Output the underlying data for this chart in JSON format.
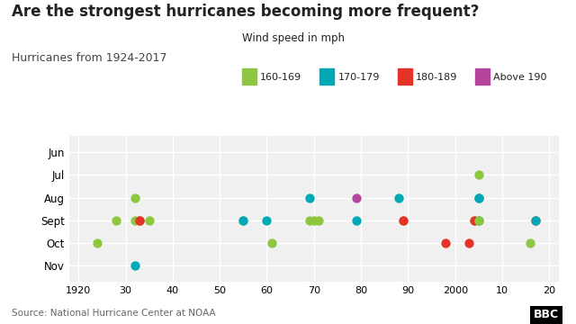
{
  "title": "Are the strongest hurricanes becoming more frequent?",
  "subtitle": "Hurricanes from 1924-2017",
  "legend_title": "Wind speed in mph",
  "source": "Source: National Hurricane Center at NOAA",
  "colors": {
    "160-169": "#8dc63f",
    "170-179": "#00a9b5",
    "180-189": "#e63329",
    "Above 190": "#b5449b"
  },
  "legend_labels": [
    "160-169",
    "170-179",
    "180-189",
    "Above 190"
  ],
  "months": [
    "Jun",
    "Jul",
    "Aug",
    "Sept",
    "Oct",
    "Nov"
  ],
  "month_y": {
    "Jun": 6,
    "Jul": 5,
    "Aug": 4,
    "Sept": 3,
    "Oct": 2,
    "Nov": 1
  },
  "xlim": [
    1918,
    2022
  ],
  "xticks": [
    1920,
    1930,
    1940,
    1950,
    1960,
    1970,
    1980,
    1990,
    2000,
    2010,
    2020
  ],
  "xticklabels": [
    "1920",
    "30",
    "40",
    "50",
    "60",
    "70",
    "80",
    "90",
    "2000",
    "10",
    "20"
  ],
  "ylim": [
    0.3,
    6.7
  ],
  "dots": [
    {
      "year": 1924,
      "month": "Oct",
      "speed": "160-169"
    },
    {
      "year": 1928,
      "month": "Sept",
      "speed": "160-169"
    },
    {
      "year": 1932,
      "month": "Aug",
      "speed": "160-169"
    },
    {
      "year": 1932,
      "month": "Sept",
      "speed": "160-169"
    },
    {
      "year": 1933,
      "month": "Sept",
      "speed": "180-189"
    },
    {
      "year": 1933,
      "month": "Sept",
      "speed": "160-169"
    },
    {
      "year": 1933,
      "month": "Sept",
      "speed": "180-189"
    },
    {
      "year": 1935,
      "month": "Sept",
      "speed": "160-169"
    },
    {
      "year": 1932,
      "month": "Nov",
      "speed": "170-179"
    },
    {
      "year": 1955,
      "month": "Sept",
      "speed": "160-169"
    },
    {
      "year": 1955,
      "month": "Sept",
      "speed": "170-179"
    },
    {
      "year": 1961,
      "month": "Oct",
      "speed": "160-169"
    },
    {
      "year": 1960,
      "month": "Sept",
      "speed": "170-179"
    },
    {
      "year": 1969,
      "month": "Aug",
      "speed": "170-179"
    },
    {
      "year": 1969,
      "month": "Sept",
      "speed": "160-169"
    },
    {
      "year": 1970,
      "month": "Sept",
      "speed": "160-169"
    },
    {
      "year": 1971,
      "month": "Sept",
      "speed": "160-169"
    },
    {
      "year": 1979,
      "month": "Aug",
      "speed": "Above 190"
    },
    {
      "year": 1979,
      "month": "Sept",
      "speed": "170-179"
    },
    {
      "year": 1988,
      "month": "Aug",
      "speed": "170-179"
    },
    {
      "year": 1989,
      "month": "Sept",
      "speed": "160-169"
    },
    {
      "year": 1989,
      "month": "Sept",
      "speed": "180-189"
    },
    {
      "year": 1998,
      "month": "Oct",
      "speed": "180-189"
    },
    {
      "year": 2003,
      "month": "Oct",
      "speed": "180-189"
    },
    {
      "year": 2004,
      "month": "Sept",
      "speed": "160-169"
    },
    {
      "year": 2004,
      "month": "Sept",
      "speed": "180-189"
    },
    {
      "year": 2005,
      "month": "Jul",
      "speed": "160-169"
    },
    {
      "year": 2005,
      "month": "Aug",
      "speed": "170-179"
    },
    {
      "year": 2005,
      "month": "Aug",
      "speed": "170-179"
    },
    {
      "year": 2005,
      "month": "Sept",
      "speed": "170-179"
    },
    {
      "year": 2005,
      "month": "Sept",
      "speed": "160-169"
    },
    {
      "year": 2016,
      "month": "Oct",
      "speed": "160-169"
    },
    {
      "year": 2017,
      "month": "Sept",
      "speed": "180-189"
    },
    {
      "year": 2017,
      "month": "Sept",
      "speed": "170-179"
    }
  ],
  "background_color": "#ffffff",
  "plot_bg": "#f0f0f0",
  "grid_color": "#ffffff",
  "title_fontsize": 12,
  "subtitle_fontsize": 9,
  "dot_size": 55
}
